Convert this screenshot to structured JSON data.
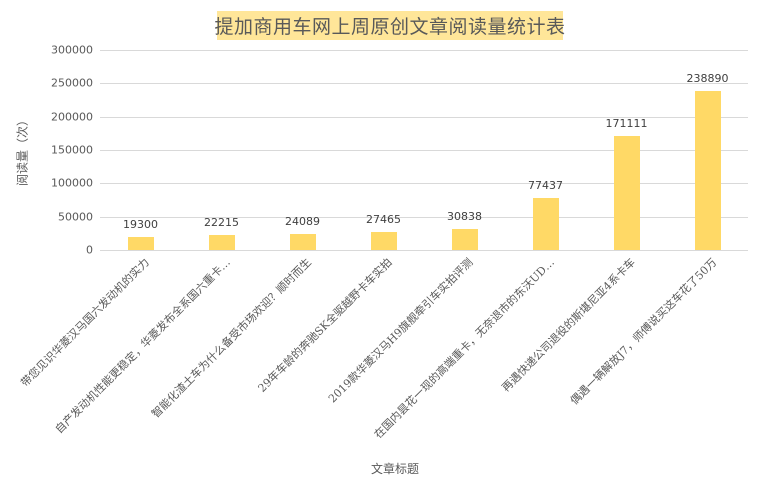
{
  "chart_data": {
    "type": "bar",
    "title": "提加商用车网上周原创文章阅读量统计表",
    "xlabel": "文章标题",
    "ylabel": "阅读量（次）",
    "ylim": [
      0,
      300000
    ],
    "yticks": [
      "0",
      "50000",
      "100000",
      "150000",
      "200000",
      "250000",
      "300000"
    ],
    "grid": true,
    "legend": null,
    "bar_color": "#FFD966",
    "title_bg_color": "#FFE699",
    "categories": [
      "带您见识华菱汉马国六发动机的实力",
      "自产发动机性能更稳定，华菱发布全系国六重卡…",
      "智能化渣土车为什么备受市场欢迎？顺时而生",
      "29年车龄的奔驰SK全驱越野卡车实拍",
      "2019款华菱汉马H9旗舰牵引车实拍评测",
      "在国内昙花一现的高端重卡，无奈退市的东沃UD…",
      "再遇快递公司退役的斯堪尼亚4系卡车",
      "偶遇一辆解放J7，师傅说买这车花了50万"
    ],
    "values": [
      19300,
      22215,
      24089,
      27465,
      30838,
      77437,
      171111,
      238890
    ],
    "value_labels": [
      "19300",
      "22215",
      "24089",
      "27465",
      "30838",
      "77437",
      "171111",
      "238890"
    ]
  }
}
